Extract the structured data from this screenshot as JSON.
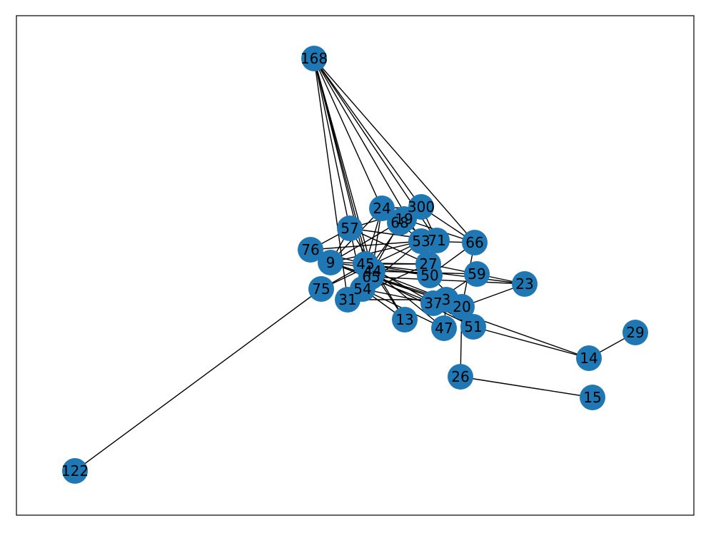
{
  "nodes": [
    "168",
    "300",
    "24",
    "19",
    "68",
    "57",
    "53",
    "71",
    "66",
    "76",
    "9",
    "45",
    "44",
    "65",
    "27",
    "50",
    "59",
    "23",
    "75",
    "54",
    "31",
    "37",
    "3",
    "20",
    "13",
    "47",
    "51",
    "29",
    "14",
    "26",
    "15",
    "122"
  ]
}
